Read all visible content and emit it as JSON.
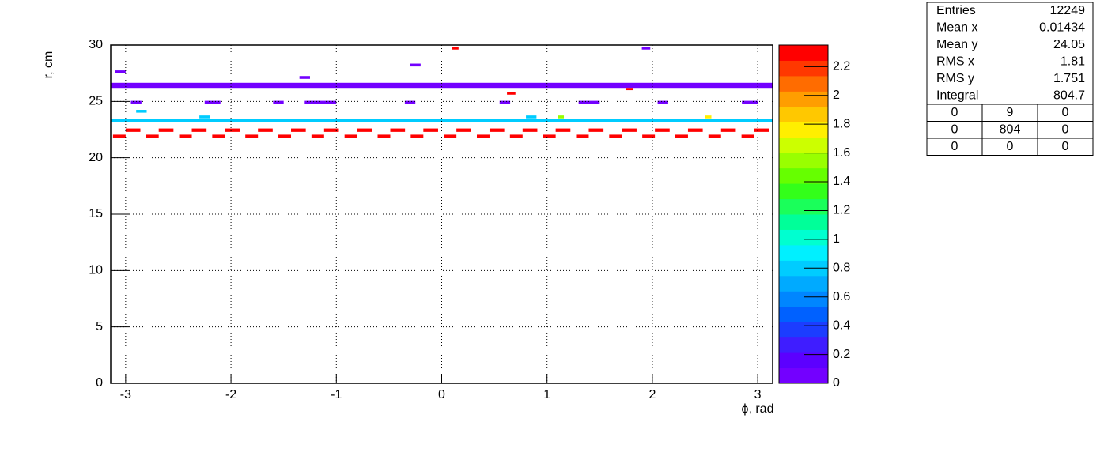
{
  "chart_data": {
    "type": "heatmap",
    "xlabel": "ϕ, rad",
    "ylabel": "r, cm",
    "xlim": [
      -3.1416,
      3.1416
    ],
    "xticks": [
      -3,
      -2,
      -1,
      0,
      1,
      2,
      3
    ],
    "ylim": [
      0,
      30
    ],
    "yticks": [
      0,
      5,
      10,
      15,
      20,
      25,
      30
    ],
    "zlim": [
      0,
      2.35
    ],
    "zticks": [
      0,
      0.2,
      0.4,
      0.6,
      0.8,
      1,
      1.2,
      1.4,
      1.6,
      1.8,
      2,
      2.2
    ],
    "grid": true,
    "palette": [
      "#7300ff",
      "#5c00ff",
      "#3f1dff",
      "#1c3dff",
      "#0061ff",
      "#0086ff",
      "#00aaff",
      "#00ccff",
      "#00f0ff",
      "#00ffd0",
      "#00ff99",
      "#1aff5a",
      "#33ff1a",
      "#66ff00",
      "#99ff00",
      "#ccff00",
      "#ffef00",
      "#ffc800",
      "#ff9e00",
      "#ff6c00",
      "#ff3800",
      "#ff0000"
    ],
    "cells": [
      {
        "x": [
          -3.1416,
          3.1416
        ],
        "y": [
          26.2,
          26.65
        ],
        "v": 0.05
      },
      {
        "x": [
          -3.1416,
          3.1416
        ],
        "y": [
          23.2,
          23.45
        ],
        "v": 0.85
      },
      {
        "x": [
          -3.12,
          -3.0
        ],
        "y": [
          21.8,
          22.05
        ],
        "v": 2.3
      },
      {
        "x": [
          -3.0,
          -2.86
        ],
        "y": [
          22.3,
          22.6
        ],
        "v": 2.3
      },
      {
        "x": [
          -2.806,
          -2.686
        ],
        "y": [
          21.8,
          22.05
        ],
        "v": 2.3
      },
      {
        "x": [
          -2.686,
          -2.546
        ],
        "y": [
          22.3,
          22.6
        ],
        "v": 2.3
      },
      {
        "x": [
          -2.492,
          -2.372
        ],
        "y": [
          21.8,
          22.05
        ],
        "v": 2.3
      },
      {
        "x": [
          -2.372,
          -2.232
        ],
        "y": [
          22.3,
          22.6
        ],
        "v": 2.3
      },
      {
        "x": [
          -2.178,
          -2.058
        ],
        "y": [
          21.8,
          22.05
        ],
        "v": 2.3
      },
      {
        "x": [
          -2.058,
          -1.918
        ],
        "y": [
          22.3,
          22.6
        ],
        "v": 2.3
      },
      {
        "x": [
          -1.864,
          -1.744
        ],
        "y": [
          21.8,
          22.05
        ],
        "v": 2.3
      },
      {
        "x": [
          -1.744,
          -1.604
        ],
        "y": [
          22.3,
          22.6
        ],
        "v": 2.3
      },
      {
        "x": [
          -1.55,
          -1.43
        ],
        "y": [
          21.8,
          22.05
        ],
        "v": 2.3
      },
      {
        "x": [
          -1.43,
          -1.29
        ],
        "y": [
          22.3,
          22.6
        ],
        "v": 2.3
      },
      {
        "x": [
          -1.236,
          -1.116
        ],
        "y": [
          21.8,
          22.05
        ],
        "v": 2.3
      },
      {
        "x": [
          -1.116,
          -0.976
        ],
        "y": [
          22.3,
          22.6
        ],
        "v": 2.3
      },
      {
        "x": [
          -0.922,
          -0.802
        ],
        "y": [
          21.8,
          22.05
        ],
        "v": 2.3
      },
      {
        "x": [
          -0.802,
          -0.662
        ],
        "y": [
          22.3,
          22.6
        ],
        "v": 2.3
      },
      {
        "x": [
          -0.608,
          -0.488
        ],
        "y": [
          21.8,
          22.05
        ],
        "v": 2.3
      },
      {
        "x": [
          -0.488,
          -0.348
        ],
        "y": [
          22.3,
          22.6
        ],
        "v": 2.3
      },
      {
        "x": [
          -0.294,
          -0.174
        ],
        "y": [
          21.8,
          22.05
        ],
        "v": 2.3
      },
      {
        "x": [
          -0.174,
          -0.034
        ],
        "y": [
          22.3,
          22.6
        ],
        "v": 2.3
      },
      {
        "x": [
          0.02,
          0.14
        ],
        "y": [
          21.8,
          22.05
        ],
        "v": 2.3
      },
      {
        "x": [
          0.14,
          0.28
        ],
        "y": [
          22.3,
          22.6
        ],
        "v": 2.3
      },
      {
        "x": [
          0.334,
          0.454
        ],
        "y": [
          21.8,
          22.05
        ],
        "v": 2.3
      },
      {
        "x": [
          0.454,
          0.594
        ],
        "y": [
          22.3,
          22.6
        ],
        "v": 2.3
      },
      {
        "x": [
          0.648,
          0.768
        ],
        "y": [
          21.8,
          22.05
        ],
        "v": 2.3
      },
      {
        "x": [
          0.768,
          0.908
        ],
        "y": [
          22.3,
          22.6
        ],
        "v": 2.3
      },
      {
        "x": [
          0.962,
          1.082
        ],
        "y": [
          21.8,
          22.05
        ],
        "v": 2.3
      },
      {
        "x": [
          1.082,
          1.222
        ],
        "y": [
          22.3,
          22.6
        ],
        "v": 2.3
      },
      {
        "x": [
          1.276,
          1.396
        ],
        "y": [
          21.8,
          22.05
        ],
        "v": 2.3
      },
      {
        "x": [
          1.396,
          1.536
        ],
        "y": [
          22.3,
          22.6
        ],
        "v": 2.3
      },
      {
        "x": [
          1.59,
          1.71
        ],
        "y": [
          21.8,
          22.05
        ],
        "v": 2.3
      },
      {
        "x": [
          1.71,
          1.85
        ],
        "y": [
          22.3,
          22.6
        ],
        "v": 2.3
      },
      {
        "x": [
          1.904,
          2.024
        ],
        "y": [
          21.8,
          22.05
        ],
        "v": 2.3
      },
      {
        "x": [
          2.024,
          2.164
        ],
        "y": [
          22.3,
          22.6
        ],
        "v": 2.3
      },
      {
        "x": [
          2.218,
          2.338
        ],
        "y": [
          21.8,
          22.05
        ],
        "v": 2.3
      },
      {
        "x": [
          2.338,
          2.478
        ],
        "y": [
          22.3,
          22.6
        ],
        "v": 2.3
      },
      {
        "x": [
          2.532,
          2.652
        ],
        "y": [
          21.8,
          22.05
        ],
        "v": 2.3
      },
      {
        "x": [
          2.652,
          2.792
        ],
        "y": [
          22.3,
          22.6
        ],
        "v": 2.3
      },
      {
        "x": [
          2.846,
          2.966
        ],
        "y": [
          21.8,
          22.05
        ],
        "v": 2.3
      },
      {
        "x": [
          2.966,
          3.106
        ],
        "y": [
          22.3,
          22.6
        ],
        "v": 2.3
      },
      {
        "x": [
          -2.95,
          -2.85
        ],
        "y": [
          24.8,
          25.05
        ],
        "v": 0.05
      },
      {
        "x": [
          -2.25,
          -2.1
        ],
        "y": [
          24.8,
          25.05
        ],
        "v": 0.05
      },
      {
        "x": [
          -1.6,
          -1.5
        ],
        "y": [
          24.8,
          25.05
        ],
        "v": 0.05
      },
      {
        "x": [
          -1.3,
          -1.0
        ],
        "y": [
          24.8,
          25.05
        ],
        "v": 0.05
      },
      {
        "x": [
          -0.35,
          -0.25
        ],
        "y": [
          24.8,
          25.05
        ],
        "v": 0.05
      },
      {
        "x": [
          0.55,
          0.65
        ],
        "y": [
          24.8,
          25.05
        ],
        "v": 0.05
      },
      {
        "x": [
          1.3,
          1.5
        ],
        "y": [
          24.8,
          25.05
        ],
        "v": 0.05
      },
      {
        "x": [
          2.05,
          2.15
        ],
        "y": [
          24.8,
          25.05
        ],
        "v": 0.05
      },
      {
        "x": [
          2.85,
          3.0
        ],
        "y": [
          24.8,
          25.05
        ],
        "v": 0.05
      },
      {
        "x": [
          -3.1,
          -3.0
        ],
        "y": [
          27.5,
          27.75
        ],
        "v": 0.05
      },
      {
        "x": [
          -1.35,
          -1.25
        ],
        "y": [
          27.0,
          27.25
        ],
        "v": 0.05
      },
      {
        "x": [
          -0.3,
          -0.2
        ],
        "y": [
          28.1,
          28.35
        ],
        "v": 0.05
      },
      {
        "x": [
          0.1,
          0.16
        ],
        "y": [
          29.6,
          29.85
        ],
        "v": 2.3
      },
      {
        "x": [
          1.9,
          1.98
        ],
        "y": [
          29.6,
          29.85
        ],
        "v": 0.05
      },
      {
        "x": [
          1.75,
          1.82
        ],
        "y": [
          26.0,
          26.2
        ],
        "v": 2.3
      },
      {
        "x": [
          0.62,
          0.7
        ],
        "y": [
          25.6,
          25.85
        ],
        "v": 2.3
      },
      {
        "x": [
          1.1,
          1.16
        ],
        "y": [
          23.5,
          23.75
        ],
        "v": 1.6
      },
      {
        "x": [
          2.5,
          2.56
        ],
        "y": [
          23.5,
          23.75
        ],
        "v": 1.8
      },
      {
        "x": [
          -2.3,
          -2.2
        ],
        "y": [
          23.5,
          23.75
        ],
        "v": 0.85
      },
      {
        "x": [
          0.8,
          0.9
        ],
        "y": [
          23.5,
          23.75
        ],
        "v": 0.85
      },
      {
        "x": [
          -2.9,
          -2.8
        ],
        "y": [
          24.0,
          24.25
        ],
        "v": 0.85
      }
    ],
    "stats": {
      "rows": [
        [
          "Entries",
          "12249"
        ],
        [
          "Mean x",
          "0.01434"
        ],
        [
          "Mean y",
          "24.05"
        ],
        [
          "RMS x",
          "1.81"
        ],
        [
          "RMS y",
          "1.751"
        ],
        [
          "Integral",
          "804.7"
        ]
      ],
      "grid": [
        [
          "0",
          "9",
          "0"
        ],
        [
          "0",
          "804",
          "0"
        ],
        [
          "0",
          "0",
          "0"
        ]
      ]
    }
  }
}
